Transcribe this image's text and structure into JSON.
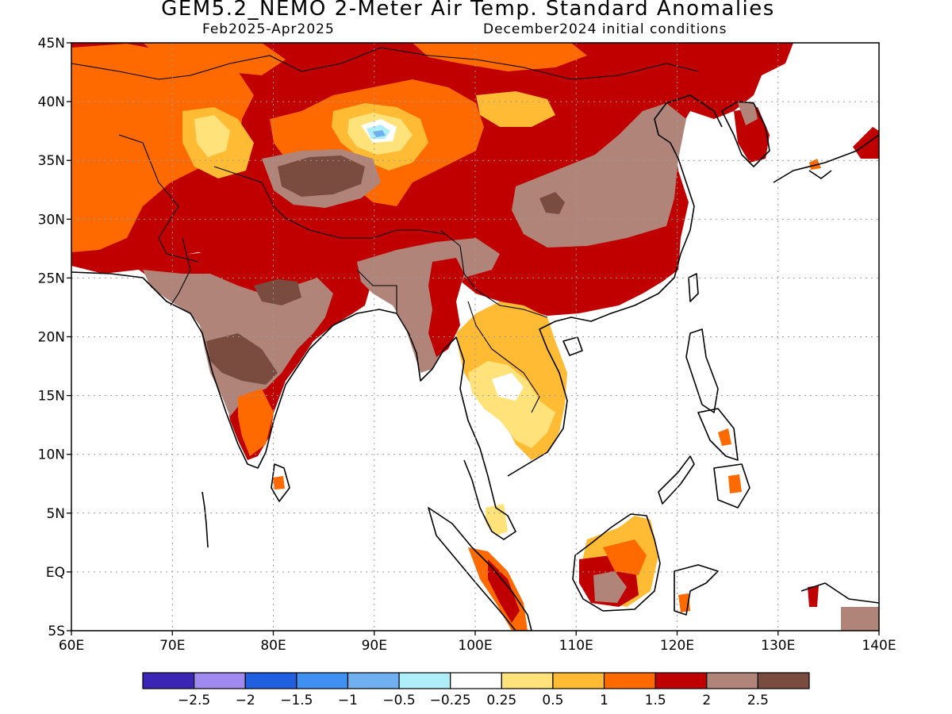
{
  "header": {
    "title": "GEM5.2_NEMO 2-Meter Air Temp. Standard Anomalies",
    "period": "Feb2025-Apr2025",
    "init": "December2024 initial conditions"
  },
  "map": {
    "lat_labels": [
      "45N",
      "40N",
      "35N",
      "30N",
      "25N",
      "20N",
      "15N",
      "10N",
      "5N",
      "EQ",
      "5S"
    ],
    "lon_labels": [
      "60E",
      "70E",
      "80E",
      "90E",
      "100E",
      "110E",
      "120E",
      "130E",
      "140E"
    ],
    "extent": {
      "lon": [
        60,
        140
      ],
      "lat": [
        -5,
        45
      ]
    },
    "gridlines": true
  },
  "legend": {
    "labels": [
      "-2.5",
      "-2",
      "-1.5",
      "-1",
      "-0.5",
      "-0.25",
      "0.25",
      "0.5",
      "1",
      "1.5",
      "2",
      "2.5"
    ],
    "colors": [
      "#3b25b5",
      "#a08af0",
      "#2060e0",
      "#3f90f0",
      "#70b0f0",
      "#aeeef8",
      "#ffffff",
      "#ffe27a",
      "#ffbb33",
      "#ff6a00",
      "#c00000",
      "#b08478",
      "#7a4c40"
    ]
  },
  "colors": {
    "land_outline": "#000000",
    "grid": "#999999"
  }
}
